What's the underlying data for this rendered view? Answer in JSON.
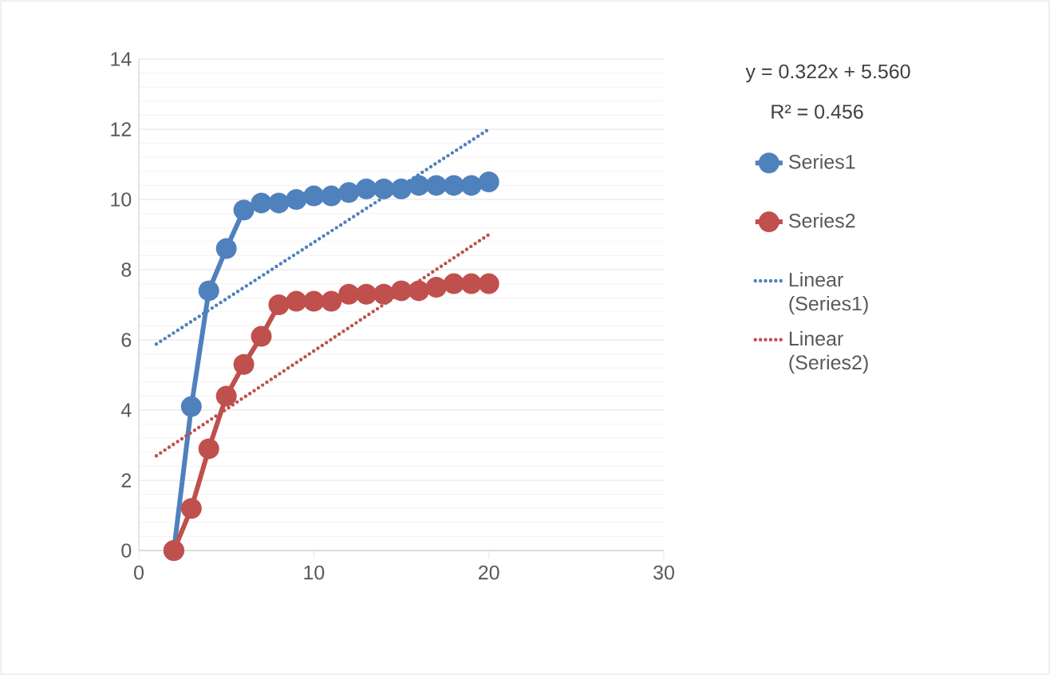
{
  "chart_data": {
    "type": "line",
    "xlim": [
      0,
      30
    ],
    "ylim": [
      0,
      14
    ],
    "xticks": [
      0,
      10,
      20,
      30
    ],
    "yticks": [
      0,
      2,
      4,
      6,
      8,
      10,
      12,
      14
    ],
    "grid": "y",
    "legend": "right",
    "marker": "circle",
    "line_style": "solid",
    "annotations": [
      "y = 0.322x + 5.560",
      "R² = 0.456"
    ],
    "series": [
      {
        "name": "Series1",
        "color": "#4f81bd",
        "x": [
          2,
          3,
          4,
          5,
          6,
          7,
          8,
          9,
          10,
          11,
          12,
          13,
          14,
          15,
          16,
          17,
          18,
          19,
          20
        ],
        "values": [
          0,
          4.1,
          7.4,
          8.6,
          9.7,
          9.9,
          9.9,
          10.0,
          10.1,
          10.1,
          10.2,
          10.3,
          10.3,
          10.3,
          10.4,
          10.4,
          10.4,
          10.4,
          10.5
        ]
      },
      {
        "name": "Series2",
        "color": "#c0504d",
        "x": [
          2,
          3,
          4,
          5,
          6,
          7,
          8,
          9,
          10,
          11,
          12,
          13,
          14,
          15,
          16,
          17,
          18,
          19,
          20
        ],
        "values": [
          0,
          1.2,
          2.9,
          4.4,
          5.3,
          6.1,
          7.0,
          7.1,
          7.1,
          7.1,
          7.3,
          7.3,
          7.3,
          7.4,
          7.4,
          7.5,
          7.6,
          7.6,
          7.6
        ]
      },
      {
        "name": "Linear (Series1)",
        "color": "#4f81bd",
        "marker": "none",
        "line_style": "dotted",
        "x": [
          1,
          20
        ],
        "values": [
          5.88,
          12.0
        ]
      },
      {
        "name": "Linear (Series2)",
        "color": "#c0504d",
        "marker": "none",
        "line_style": "dotted",
        "x": [
          1,
          20
        ],
        "values": [
          2.7,
          9.0
        ]
      }
    ]
  }
}
